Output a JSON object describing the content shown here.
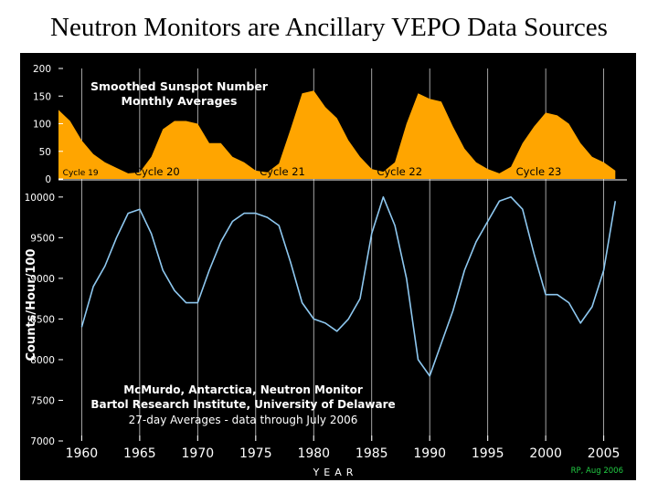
{
  "slide": {
    "title": "Neutron Monitors are Ancillary VEPO Data Sources"
  },
  "colors": {
    "background": "#000000",
    "sunspot": "#ffa500",
    "neutron": "#8ec8f0",
    "axis": "#ffffff",
    "credit": "#22cc44"
  },
  "chart_data": [
    {
      "type": "area",
      "title": "Smoothed Sunspot Number",
      "subtitle": "Monthly Averages",
      "xlim": [
        1958,
        2007
      ],
      "ylim": [
        0,
        200
      ],
      "yticks": [
        0,
        50,
        100,
        150,
        200
      ],
      "annotations": [
        {
          "x": 1959.9,
          "label": "Cycle 19"
        },
        {
          "x": 1966.5,
          "label": "Cycle 20"
        },
        {
          "x": 1977.3,
          "label": "Cycle 21"
        },
        {
          "x": 1987.4,
          "label": "Cycle 22"
        },
        {
          "x": 1999.4,
          "label": "Cycle 23"
        }
      ],
      "series": [
        {
          "x": [
            1958,
            1959,
            1960,
            1961,
            1962,
            1963,
            1964,
            1965,
            1966,
            1967,
            1968,
            1969,
            1970,
            1971,
            1972,
            1973,
            1974,
            1975,
            1976,
            1977,
            1978,
            1979,
            1980,
            1981,
            1982,
            1983,
            1984,
            1985,
            1986,
            1987,
            1988,
            1989,
            1990,
            1991,
            1992,
            1993,
            1994,
            1995,
            1996,
            1997,
            1998,
            1999,
            2000,
            2001,
            2002,
            2003,
            2004,
            2005,
            2006
          ],
          "values": [
            125,
            105,
            70,
            45,
            30,
            20,
            10,
            12,
            40,
            90,
            105,
            105,
            100,
            65,
            65,
            40,
            30,
            15,
            12,
            28,
            90,
            155,
            160,
            130,
            110,
            70,
            40,
            18,
            13,
            30,
            100,
            155,
            145,
            140,
            95,
            55,
            30,
            18,
            10,
            22,
            65,
            95,
            120,
            115,
            100,
            65,
            40,
            30,
            15
          ]
        }
      ]
    },
    {
      "type": "line",
      "title": "McMurdo, Antarctica, Neutron Monitor",
      "subtitle": "Bartol Research Institute, University of Delaware",
      "caption": "27-day Averages - data through July 2006",
      "xlabel": "YEAR",
      "ylabel": "Counts/Hour/100",
      "xlim": [
        1958,
        2007
      ],
      "ylim": [
        7000,
        10200
      ],
      "xticks": [
        1960,
        1965,
        1970,
        1975,
        1980,
        1985,
        1990,
        1995,
        2000,
        2005
      ],
      "yticks": [
        7000,
        7500,
        8000,
        8500,
        9000,
        9500,
        10000
      ],
      "series": [
        {
          "x": [
            1960,
            1961,
            1962,
            1963,
            1964,
            1965,
            1966,
            1967,
            1968,
            1969,
            1970,
            1971,
            1972,
            1973,
            1974,
            1975,
            1976,
            1977,
            1978,
            1979,
            1980,
            1981,
            1982,
            1983,
            1984,
            1985,
            1986,
            1987,
            1988,
            1989,
            1990,
            1991,
            1992,
            1993,
            1994,
            1995,
            1996,
            1997,
            1998,
            1999,
            2000,
            2001,
            2002,
            2003,
            2004,
            2005,
            2006
          ],
          "values": [
            8400,
            8900,
            9150,
            9500,
            9800,
            9850,
            9550,
            9100,
            8850,
            8700,
            8700,
            9100,
            9450,
            9700,
            9800,
            9800,
            9750,
            9650,
            9200,
            8700,
            8500,
            8450,
            8350,
            8500,
            8750,
            9550,
            10000,
            9650,
            9000,
            8000,
            7800,
            8200,
            8600,
            9100,
            9450,
            9700,
            9950,
            10000,
            9850,
            9300,
            8800,
            8800,
            8700,
            8450,
            8650,
            9100,
            9950
          ]
        }
      ]
    }
  ],
  "credit": "RP, Aug 2006"
}
